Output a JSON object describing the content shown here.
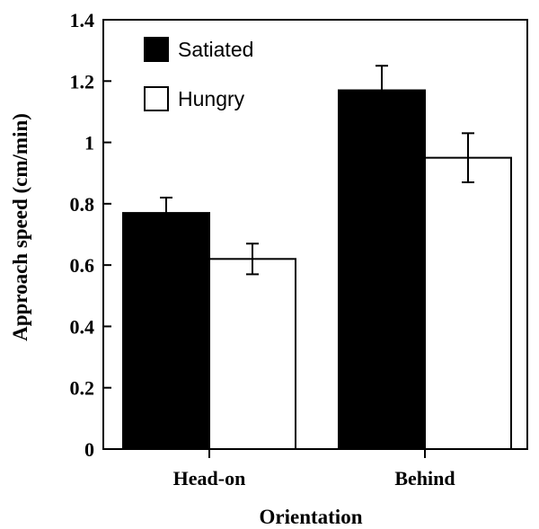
{
  "chart_data": {
    "type": "bar",
    "title": "",
    "xlabel": "Orientation",
    "ylabel": "Approach speed (cm/min)",
    "categories": [
      "Head-on",
      "Behind"
    ],
    "ylim": [
      0,
      1.4
    ],
    "yticks": [
      0,
      0.2,
      0.4,
      0.6,
      0.8,
      1,
      1.2,
      1.4
    ],
    "ytick_labels": [
      "0",
      "0.2",
      "0.4",
      "0.6",
      "0.8",
      "1",
      "1.2",
      "1.4"
    ],
    "grid": false,
    "legend_position": "top-left",
    "series": [
      {
        "name": "Satiated",
        "color": "#000000",
        "values": [
          0.77,
          1.17
        ],
        "errors": [
          0.05,
          0.08
        ]
      },
      {
        "name": "Hungry",
        "color": "#ffffff",
        "values": [
          0.62,
          0.95
        ],
        "errors": [
          0.05,
          0.08
        ]
      }
    ]
  }
}
